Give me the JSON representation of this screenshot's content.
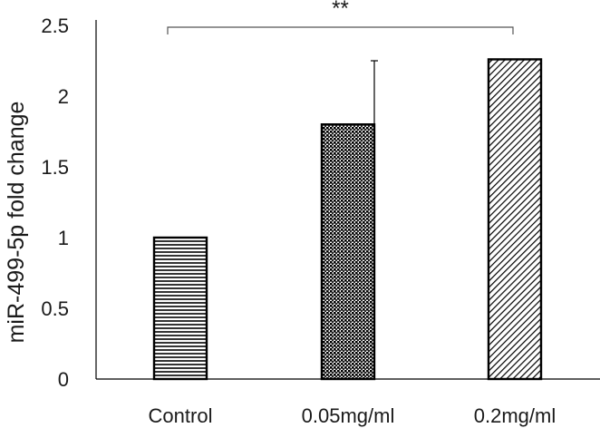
{
  "chart_data": {
    "type": "bar",
    "title": "",
    "xlabel": "",
    "ylabel": "miR-499-5p fold change",
    "ylim": [
      0,
      2.5
    ],
    "yticks": [
      0,
      0.5,
      1,
      1.5,
      2,
      2.5
    ],
    "ytick_labels": [
      "0",
      "0.5",
      "1",
      "1.5",
      "2",
      "2.5"
    ],
    "categories": [
      "Control",
      "0.05mg/ml",
      "0.2mg/ml"
    ],
    "values": [
      1.0,
      1.8,
      2.26
    ],
    "error_upper": [
      0,
      0.45,
      0
    ],
    "patterns": [
      "horizontal-lines",
      "dense-dots",
      "diagonal-lines"
    ],
    "significance": {
      "label": "**",
      "from_category": "Control",
      "to_category": "0.2mg/ml"
    },
    "grid": false,
    "legend": "none"
  },
  "colors": {
    "bar_edge": "#000000",
    "bar_fill": "#ffffff",
    "axis": "#000000",
    "bracket": "#555555",
    "text": "#1a1a1a"
  }
}
